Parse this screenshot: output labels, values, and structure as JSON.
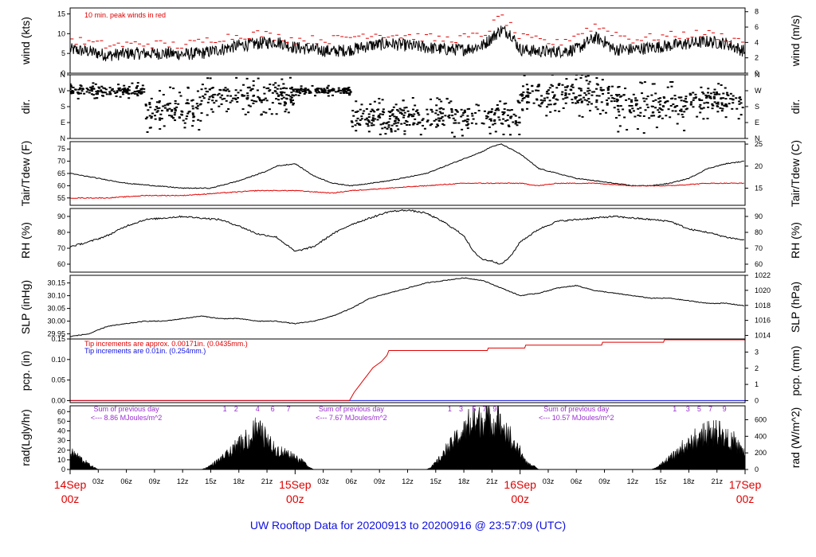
{
  "title": "UW Rooftop Data for 20200913  to  20200916 @ 23:57:09  (UTC)",
  "colors": {
    "title": "#1010e0",
    "red": "#e00000",
    "blue": "#1010e0",
    "purple": "#9a30d0"
  },
  "x_axis": {
    "major": [
      {
        "day": "14Sep",
        "hour": "00z",
        "pos": 0
      },
      {
        "day": "15Sep",
        "hour": "00z",
        "pos": 24
      },
      {
        "day": "16Sep",
        "hour": "00z",
        "pos": 48
      },
      {
        "day": "17Sep",
        "hour": "00z",
        "pos": 72
      }
    ],
    "minor": [
      {
        "label": "03z",
        "pos": 3
      },
      {
        "label": "06z",
        "pos": 6
      },
      {
        "label": "09z",
        "pos": 9
      },
      {
        "label": "12z",
        "pos": 12
      },
      {
        "label": "15z",
        "pos": 15
      },
      {
        "label": "18z",
        "pos": 18
      },
      {
        "label": "21z",
        "pos": 21
      },
      {
        "label": "03z",
        "pos": 27
      },
      {
        "label": "06z",
        "pos": 30
      },
      {
        "label": "09z",
        "pos": 33
      },
      {
        "label": "12z",
        "pos": 36
      },
      {
        "label": "15z",
        "pos": 39
      },
      {
        "label": "18z",
        "pos": 42
      },
      {
        "label": "21z",
        "pos": 45
      },
      {
        "label": "03z",
        "pos": 51
      },
      {
        "label": "06z",
        "pos": 54
      },
      {
        "label": "09z",
        "pos": 57
      },
      {
        "label": "12z",
        "pos": 60
      },
      {
        "label": "15z",
        "pos": 63
      },
      {
        "label": "18z",
        "pos": 66
      },
      {
        "label": "21z",
        "pos": 69
      }
    ],
    "range_hours": [
      0,
      72
    ]
  },
  "annotations": {
    "wind_note": "10 min. peak winds in red",
    "tip_red": "Tip increments are approx. 0.00171in. (0.0435mm.)",
    "tip_blue": "Tip increments are 0.01in. (0.254mm.)",
    "sums": [
      {
        "line1": "Sum of previous day",
        "line2": "<--- 8.86 MJoules/m^2",
        "hour": 6
      },
      {
        "line1": "Sum of previous day",
        "line2": "<--- 7.67 MJoules/m^2",
        "hour": 30
      },
      {
        "line1": "Sum of previous day",
        "line2": "<--- 10.57 MJoules/m^2",
        "hour": 54
      }
    ],
    "sunhours": [
      {
        "text": "1",
        "hour": 16.5
      },
      {
        "text": "2",
        "hour": 17.7
      },
      {
        "text": "4",
        "hour": 20
      },
      {
        "text": "6",
        "hour": 21.6
      },
      {
        "text": "7",
        "hour": 23.3
      },
      {
        "text": "1",
        "hour": 40.5
      },
      {
        "text": "3",
        "hour": 41.7
      },
      {
        "text": "5",
        "hour": 43.1
      },
      {
        "text": "7",
        "hour": 44.2
      },
      {
        "text": "9",
        "hour": 45.3
      },
      {
        "text": "1",
        "hour": 64.5
      },
      {
        "text": "3",
        "hour": 65.9
      },
      {
        "text": "5",
        "hour": 67.1
      },
      {
        "text": "7",
        "hour": 68.3
      },
      {
        "text": "9",
        "hour": 69.8
      }
    ]
  },
  "chart_data": [
    {
      "type": "line",
      "panel": "wind",
      "ylabel": "wind (kts)",
      "ylabel2": "wind (m/s)",
      "ylim": [
        0,
        16.5
      ],
      "yticks": [
        0,
        5,
        10,
        15
      ],
      "y2ticks": [
        {
          "label": "0",
          "v": 0
        },
        {
          "label": "2",
          "v": 3.889
        },
        {
          "label": "4",
          "v": 7.776
        },
        {
          "label": "6",
          "v": 11.663
        },
        {
          "label": "8",
          "v": 15.55
        }
      ],
      "series": [
        {
          "color": "#000000",
          "x": [
            0,
            2,
            4,
            6,
            8,
            10,
            12,
            14,
            16,
            18,
            20,
            22,
            24,
            26,
            28,
            30,
            32,
            34,
            36,
            38,
            40,
            42,
            44,
            45,
            46,
            47,
            48,
            50,
            52,
            54,
            56,
            57,
            58,
            59,
            60,
            62,
            64,
            66,
            68,
            70,
            72
          ],
          "y": [
            6,
            5.5,
            4.5,
            5,
            5,
            5,
            4.8,
            5,
            6,
            7,
            7.5,
            8,
            6.5,
            6,
            5.5,
            6,
            7,
            7.5,
            7,
            6.5,
            6,
            6,
            7,
            9,
            11,
            10,
            6,
            5.5,
            5.5,
            6,
            9,
            8,
            6,
            6,
            6,
            6.5,
            7,
            7.5,
            8,
            7.5,
            5.5
          ]
        },
        {
          "color": "#e00000",
          "x": [
            0,
            4,
            8,
            12,
            16,
            20,
            24,
            28,
            32,
            36,
            40,
            44,
            46,
            48,
            52,
            56,
            60,
            64,
            68,
            72
          ],
          "y": [
            8.5,
            7,
            7.5,
            7,
            9,
            10,
            8.5,
            8.5,
            10,
            9.5,
            8.5,
            9.5,
            14.5,
            9,
            7.5,
            12,
            8.5,
            9.5,
            10,
            8
          ]
        }
      ]
    },
    {
      "type": "scatter",
      "panel": "direction",
      "ylabel": "dir.",
      "ylabel2": "dir.",
      "ylim": [
        0,
        360
      ],
      "yticks": [
        {
          "label": "N",
          "v": 0
        },
        {
          "label": "E",
          "v": 90
        },
        {
          "label": "S",
          "v": 180
        },
        {
          "label": "W",
          "v": 270
        },
        {
          "label": "N",
          "v": 360
        }
      ],
      "regimes": [
        {
          "x0": 0,
          "x1": 8,
          "center": 270,
          "spread": 45
        },
        {
          "x0": 8,
          "x1": 14,
          "center": 160,
          "spread": 130
        },
        {
          "x0": 14,
          "x1": 24,
          "center": 240,
          "spread": 110
        },
        {
          "x0": 24,
          "x1": 30,
          "center": 270,
          "spread": 30
        },
        {
          "x0": 30,
          "x1": 48,
          "center": 120,
          "spread": 110
        },
        {
          "x0": 48,
          "x1": 58,
          "center": 250,
          "spread": 130
        },
        {
          "x0": 58,
          "x1": 66,
          "center": 180,
          "spread": 150
        },
        {
          "x0": 66,
          "x1": 72,
          "center": 210,
          "spread": 100
        }
      ]
    },
    {
      "type": "line",
      "panel": "temperature",
      "ylabel": "Tair/Tdew (F)",
      "ylabel2": "Tair/Tdew (C)",
      "ylim": [
        52,
        78
      ],
      "yticks": [
        55,
        60,
        65,
        70,
        75
      ],
      "y2ticks": [
        {
          "label": "15",
          "v": 59
        },
        {
          "label": "20",
          "v": 68
        },
        {
          "label": "25",
          "v": 77
        }
      ],
      "series": [
        {
          "name": "Tair",
          "color": "#000000",
          "x": [
            0,
            3,
            6,
            9,
            12,
            15,
            18,
            21,
            22,
            24,
            26,
            28,
            30,
            34,
            38,
            40,
            42,
            44,
            45,
            46,
            47,
            48,
            50,
            52,
            54,
            56,
            58,
            60,
            62,
            64,
            66,
            68,
            70,
            72
          ],
          "y": [
            65,
            63,
            61,
            60,
            59,
            59,
            62,
            66,
            68,
            69,
            64,
            61,
            60,
            62,
            65,
            68,
            71,
            74,
            76,
            77,
            75,
            73,
            67,
            65,
            63,
            62,
            61,
            60,
            60,
            61,
            63,
            67,
            69,
            70
          ]
        },
        {
          "name": "Tdew",
          "color": "#e00000",
          "x": [
            0,
            4,
            8,
            12,
            16,
            20,
            24,
            28,
            30,
            34,
            38,
            42,
            46,
            48,
            50,
            52,
            56,
            60,
            64,
            68,
            72
          ],
          "y": [
            55,
            55,
            56,
            56,
            57,
            58,
            58,
            57,
            58,
            59,
            60,
            61,
            61,
            61,
            60,
            61,
            61,
            60,
            60,
            61,
            61
          ]
        }
      ]
    },
    {
      "type": "line",
      "panel": "humidity",
      "ylabel": "RH (%)",
      "ylabel2": "RH (%)",
      "ylim": [
        55,
        95
      ],
      "yticks": [
        60,
        70,
        80,
        90
      ],
      "y2ticks": [
        {
          "label": "60",
          "v": 60
        },
        {
          "label": "70",
          "v": 70
        },
        {
          "label": "80",
          "v": 80
        },
        {
          "label": "90",
          "v": 90
        }
      ],
      "series": [
        {
          "color": "#000000",
          "x": [
            0,
            2,
            4,
            6,
            8,
            10,
            12,
            14,
            16,
            18,
            20,
            22,
            24,
            26,
            28,
            30,
            32,
            34,
            36,
            38,
            40,
            42,
            43,
            44,
            45,
            46,
            47,
            48,
            50,
            52,
            54,
            56,
            58,
            60,
            62,
            64,
            66,
            68,
            70,
            72
          ],
          "y": [
            71,
            74,
            78,
            84,
            88,
            89,
            90,
            89,
            88,
            84,
            79,
            77,
            68,
            71,
            79,
            85,
            89,
            93,
            94,
            92,
            86,
            78,
            68,
            63,
            62,
            60,
            65,
            74,
            82,
            87,
            88,
            89,
            90,
            89,
            88,
            87,
            82,
            80,
            77,
            75
          ]
        }
      ]
    },
    {
      "type": "line",
      "panel": "pressure",
      "ylabel": "SLP (inHg)",
      "ylabel2": "SLP (hPa)",
      "ylim": [
        29.93,
        30.18
      ],
      "yticks": [
        29.95,
        30.0,
        30.05,
        30.1,
        30.15
      ],
      "y2ticks": [
        {
          "label": "1014",
          "v": 29.944
        },
        {
          "label": "1016",
          "v": 30.003
        },
        {
          "label": "1018",
          "v": 30.062
        },
        {
          "label": "1020",
          "v": 30.121
        },
        {
          "label": "1022",
          "v": 30.18
        }
      ],
      "series": [
        {
          "color": "#000000",
          "x": [
            0,
            2,
            4,
            6,
            8,
            10,
            12,
            14,
            16,
            18,
            20,
            22,
            24,
            26,
            28,
            30,
            32,
            34,
            36,
            38,
            40,
            42,
            44,
            46,
            48,
            50,
            52,
            54,
            56,
            58,
            60,
            62,
            64,
            66,
            68,
            70,
            72
          ],
          "y": [
            29.94,
            29.95,
            29.98,
            29.99,
            30.0,
            30.0,
            30.01,
            30.02,
            30.01,
            30.01,
            30.0,
            30.0,
            29.99,
            30.0,
            30.02,
            30.05,
            30.09,
            30.11,
            30.13,
            30.15,
            30.16,
            30.17,
            30.16,
            30.13,
            30.1,
            30.11,
            30.13,
            30.14,
            30.12,
            30.11,
            30.1,
            30.09,
            30.09,
            30.08,
            30.07,
            30.07,
            30.06
          ]
        }
      ]
    },
    {
      "type": "line",
      "panel": "precipitation",
      "ylabel": "pcp. (in)",
      "ylabel2": "pcp. (mm)",
      "ylim": [
        -0.005,
        0.15
      ],
      "yticks": [
        0.0,
        0.05,
        0.1,
        0.15
      ],
      "y2ticks": [
        {
          "label": "0",
          "v": 0
        },
        {
          "label": "1",
          "v": 0.03937
        },
        {
          "label": "2",
          "v": 0.07874
        },
        {
          "label": "3",
          "v": 0.11811
        }
      ],
      "series": [
        {
          "color": "#1010e0",
          "x": [
            0,
            72
          ],
          "y": [
            0,
            0
          ]
        },
        {
          "color": "#e00000",
          "x": [
            0,
            29.8,
            30.3,
            30.8,
            31.3,
            31.8,
            32.3,
            33.2,
            33.8,
            34,
            44.5,
            44.6,
            48.5,
            48.6,
            56.7,
            56.8,
            63.3,
            63.4,
            72
          ],
          "y": [
            0,
            0,
            0.02,
            0.035,
            0.05,
            0.065,
            0.08,
            0.095,
            0.11,
            0.122,
            0.122,
            0.128,
            0.128,
            0.135,
            0.135,
            0.142,
            0.142,
            0.148,
            0.148
          ]
        }
      ]
    },
    {
      "type": "area",
      "panel": "radiation",
      "ylabel": "rad(Lgly/hr)",
      "ylabel2": "rad (W/m^2)",
      "ylim": [
        0,
        66
      ],
      "yticks": [
        0,
        10,
        20,
        30,
        40,
        50,
        60
      ],
      "y2ticks": [
        {
          "label": "0",
          "v": 0
        },
        {
          "label": "200",
          "v": 17.2
        },
        {
          "label": "400",
          "v": 34.4
        },
        {
          "label": "600",
          "v": 51.6
        }
      ],
      "series": [
        {
          "color": "#000000",
          "x": [
            0,
            0.5,
            1,
            1.5,
            2,
            2.5,
            3,
            14,
            14.5,
            15,
            16,
            17,
            18,
            19,
            19.5,
            20,
            20.5,
            21,
            22,
            23,
            24,
            25,
            25.5,
            26,
            38,
            38.5,
            39,
            40,
            41,
            42,
            43,
            44,
            45,
            46,
            47,
            48,
            48.5,
            49,
            49.5,
            50,
            62,
            62.5,
            63,
            64,
            65,
            66,
            67,
            68,
            69,
            70,
            71,
            72
          ],
          "y": [
            20,
            18,
            14,
            10,
            6,
            3,
            0,
            0,
            2,
            5,
            12,
            20,
            27,
            35,
            40,
            46,
            44,
            30,
            24,
            20,
            15,
            8,
            3,
            0,
            0,
            3,
            8,
            20,
            35,
            45,
            55,
            60,
            58,
            52,
            35,
            20,
            10,
            6,
            4,
            0,
            0,
            2,
            6,
            14,
            22,
            30,
            36,
            40,
            41,
            38,
            30,
            20
          ]
        }
      ]
    }
  ]
}
